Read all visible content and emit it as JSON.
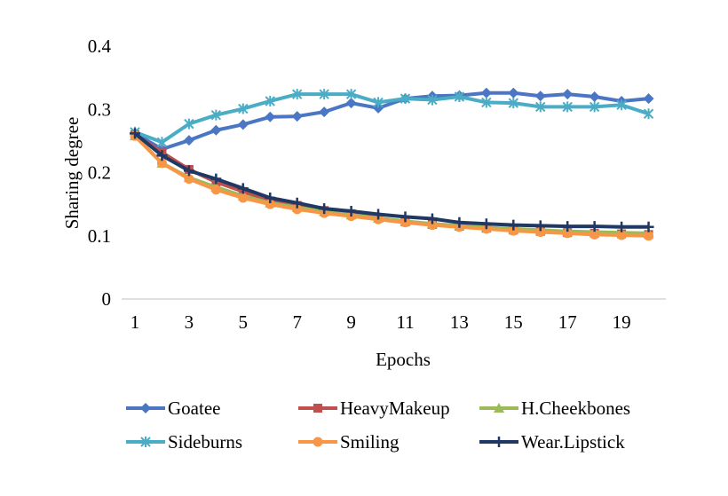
{
  "chart_data": {
    "type": "line",
    "title": "",
    "xlabel": "Epochs",
    "ylabel": "Sharing degree",
    "x": [
      1,
      2,
      3,
      4,
      5,
      6,
      7,
      8,
      9,
      10,
      11,
      12,
      13,
      14,
      15,
      16,
      17,
      18,
      19,
      20
    ],
    "xtick_labels": [
      "1",
      "3",
      "5",
      "7",
      "9",
      "11",
      "13",
      "15",
      "17",
      "19"
    ],
    "xtick_values": [
      1,
      3,
      5,
      7,
      9,
      11,
      13,
      15,
      17,
      19
    ],
    "ylim": [
      0,
      0.4
    ],
    "ytick_labels": [
      "0",
      "0.1",
      "0.2",
      "0.3",
      "0.4"
    ],
    "ytick_values": [
      0,
      0.1,
      0.2,
      0.3,
      0.4
    ],
    "grid": false,
    "legend_position": "bottom",
    "series": [
      {
        "name": "Goatee",
        "color": "#4a76c4",
        "marker": "diamond",
        "values": [
          0.262,
          0.237,
          0.251,
          0.267,
          0.276,
          0.288,
          0.289,
          0.296,
          0.31,
          0.302,
          0.317,
          0.321,
          0.322,
          0.326,
          0.326,
          0.321,
          0.324,
          0.32,
          0.313,
          0.317
        ]
      },
      {
        "name": "HeavyMakeup",
        "color": "#c0504d",
        "marker": "square",
        "values": [
          0.26,
          0.232,
          0.205,
          0.185,
          0.17,
          0.155,
          0.148,
          0.14,
          0.135,
          0.128,
          0.122,
          0.118,
          0.115,
          0.112,
          0.109,
          0.107,
          0.105,
          0.104,
          0.103,
          0.102
        ]
      },
      {
        "name": "H.Cheekbones",
        "color": "#9bbb59",
        "marker": "triangle",
        "values": [
          0.258,
          0.215,
          0.192,
          0.177,
          0.163,
          0.152,
          0.145,
          0.138,
          0.133,
          0.128,
          0.123,
          0.119,
          0.116,
          0.113,
          0.111,
          0.109,
          0.107,
          0.106,
          0.105,
          0.104
        ]
      },
      {
        "name": "Sideburns",
        "color": "#4bacc6",
        "marker": "star",
        "values": [
          0.264,
          0.248,
          0.277,
          0.291,
          0.301,
          0.313,
          0.324,
          0.324,
          0.324,
          0.311,
          0.317,
          0.315,
          0.32,
          0.311,
          0.31,
          0.304,
          0.304,
          0.304,
          0.307,
          0.293
        ]
      },
      {
        "name": "Smiling",
        "color": "#f79646",
        "marker": "circle",
        "values": [
          0.258,
          0.215,
          0.19,
          0.173,
          0.16,
          0.15,
          0.142,
          0.136,
          0.131,
          0.126,
          0.121,
          0.117,
          0.114,
          0.111,
          0.108,
          0.106,
          0.104,
          0.102,
          0.101,
          0.1
        ]
      },
      {
        "name": "Wear.Lipstick",
        "color": "#1f3864",
        "marker": "plus",
        "values": [
          0.262,
          0.227,
          0.203,
          0.19,
          0.175,
          0.16,
          0.152,
          0.143,
          0.139,
          0.134,
          0.13,
          0.127,
          0.121,
          0.119,
          0.117,
          0.116,
          0.115,
          0.115,
          0.114,
          0.114
        ]
      }
    ]
  }
}
